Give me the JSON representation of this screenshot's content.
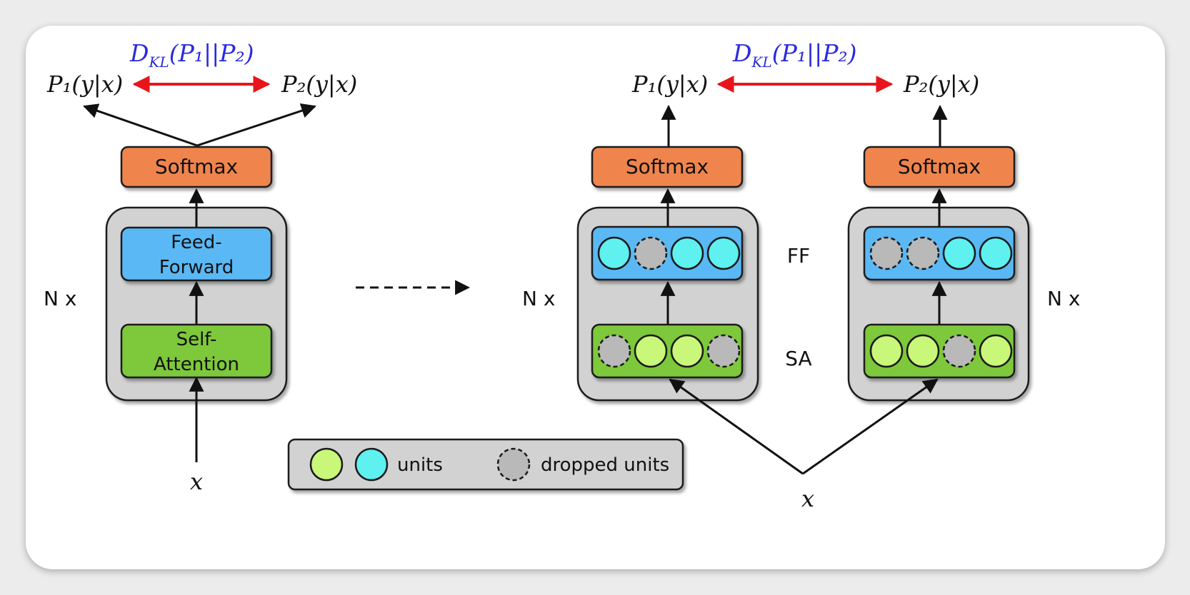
{
  "left": {
    "kl": "D_KL(P₁||P₂)",
    "kl_main": "D",
    "kl_sub": "KL",
    "kl_args": "(P₁||P₂)",
    "p1": "P₁(y|x)",
    "p2": "P₂(y|x)",
    "softmax": "Softmax",
    "ff_line1": "Feed-",
    "ff_line2": "Forward",
    "sa_line1": "Self-",
    "sa_line2": "Attention",
    "nx": "N x",
    "x": "x"
  },
  "right": {
    "kl_main": "D",
    "kl_sub": "KL",
    "kl_args": "(P₁||P₂)",
    "p1": "P₁(y|x)",
    "p2": "P₂(y|x)",
    "softmax_a": "Softmax",
    "softmax_b": "Softmax",
    "ff_label": "FF",
    "sa_label": "SA",
    "nx_left": "N x",
    "nx_right": "N x",
    "x": "x",
    "units": {
      "ff_a": [
        "unit",
        "dropped",
        "unit",
        "unit"
      ],
      "sa_a": [
        "dropped",
        "unit",
        "unit",
        "dropped"
      ],
      "ff_b": [
        "dropped",
        "dropped",
        "unit",
        "unit"
      ],
      "sa_b": [
        "unit",
        "unit",
        "dropped",
        "unit"
      ]
    }
  },
  "legend": {
    "units": "units",
    "dropped": "dropped units"
  },
  "colors": {
    "softmax": "#f0844e",
    "ff": "#5ab8f5",
    "sa": "#7ec83a",
    "container": "#d2d2d2",
    "ff_unit": "#5ff0f0",
    "sa_unit": "#c9f77a",
    "dropped_unit": "#b9b9b9",
    "kl_text": "#2a2ae0",
    "kl_arrow": "#e8151b"
  }
}
